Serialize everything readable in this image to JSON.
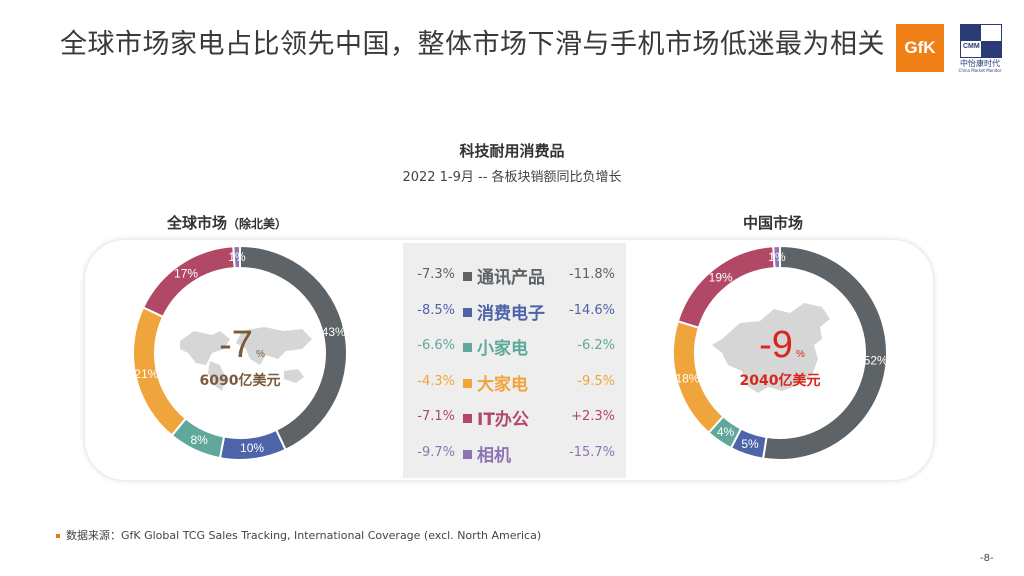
{
  "page": {
    "title": "全球市场家电占比领先中国，整体市场下滑与手机市场低迷最为相关",
    "logo_gfk": "GfK",
    "logo_cmm_text": "CMM",
    "logo_cmm_cn": "中怡康时代",
    "logo_cmm_en": "China Market Monitor",
    "source": "数据来源：GfK Global TCG  Sales Tracking, International Coverage (excl. North America)",
    "page_number": "-8-"
  },
  "chart_data": {
    "type": "pie",
    "title": "科技耐用消费品",
    "subtitle": "2022 1-9月 -- 各板块销额同比负增长",
    "colors": {
      "通讯产品": "#5d6366",
      "消费电子": "#4e64a8",
      "小家电": "#5fa89b",
      "大家电": "#f0a43c",
      "IT办公": "#b04866",
      "相机": "#8f74b4"
    },
    "categories": [
      "通讯产品",
      "消费电子",
      "小家电",
      "大家电",
      "IT办公",
      "相机"
    ],
    "growth_global": [
      "-7.3%",
      "-8.5%",
      "-6.6%",
      "-4.3%",
      "-7.1%",
      "-9.7%"
    ],
    "growth_china": [
      "-11.8%",
      "-14.6%",
      "-6.2%",
      "-9.5%",
      "+2.3%",
      "-15.7%"
    ],
    "growth_colors": [
      "#5d6366",
      "#4e64a8",
      "#5fa89b",
      "#f0a43c",
      "#b04866",
      "#8f74b4"
    ],
    "charts": [
      {
        "name": "全球市场",
        "name_suffix": "（除北美）",
        "values": [
          43,
          10,
          8,
          21,
          17,
          1
        ],
        "labels": [
          "43%",
          "10%",
          "8%",
          "21%",
          "17%",
          "1%"
        ],
        "center_growth": "-7",
        "center_growth_unit": "%",
        "center_total": "6090亿美元",
        "center_color": "#7a5a3a"
      },
      {
        "name": "中国市场",
        "name_suffix": "",
        "values": [
          52,
          5,
          4,
          18,
          19,
          1
        ],
        "labels": [
          "52%",
          "5%",
          "4%",
          "18%",
          "19%",
          "1%"
        ],
        "center_growth": "-9",
        "center_growth_unit": "%",
        "center_total": "2040亿美元",
        "center_color": "#d8261c"
      }
    ]
  }
}
